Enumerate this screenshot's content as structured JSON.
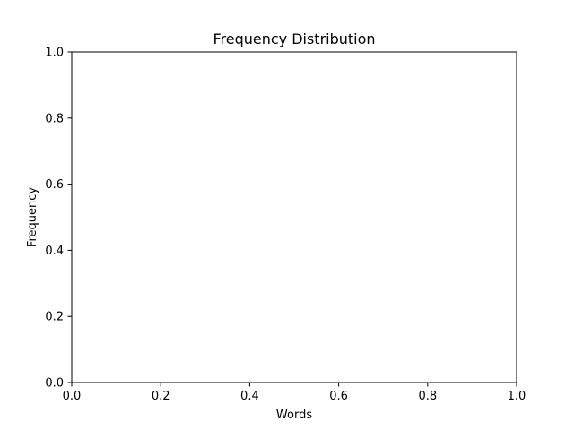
{
  "chart_data": {
    "type": "line",
    "title": "Frequency Distribution",
    "xlabel": "Words",
    "ylabel": "Frequency",
    "xlim": [
      0.0,
      1.0
    ],
    "ylim": [
      0.0,
      1.0
    ],
    "xticks": [
      0.0,
      0.2,
      0.4,
      0.6,
      0.8,
      1.0
    ],
    "yticks": [
      0.0,
      0.2,
      0.4,
      0.6,
      0.8,
      1.0
    ],
    "xtick_labels": [
      "0.0",
      "0.2",
      "0.4",
      "0.6",
      "0.8",
      "1.0"
    ],
    "ytick_labels": [
      "0.0",
      "0.2",
      "0.4",
      "0.6",
      "0.8",
      "1.0"
    ],
    "series": [],
    "grid": false,
    "legend": "none"
  },
  "colors": {
    "background": "#ffffff",
    "axes": "#000000",
    "text": "#000000"
  }
}
